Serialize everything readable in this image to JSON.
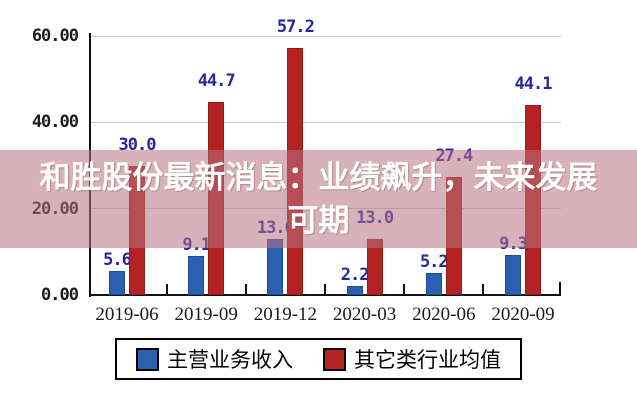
{
  "banner": {
    "line1": "和胜股份最新消息：业绩飙升，未来发展",
    "line2": "可期",
    "background": "rgba(184,115,130,0.55)",
    "text_color": "#ffffff"
  },
  "legend": {
    "items": [
      {
        "label": "主营业务收入",
        "color": "#2b5fb0"
      },
      {
        "label": "其它类行业均值",
        "color": "#b52222"
      }
    ]
  },
  "chart_data": {
    "type": "bar",
    "title": "",
    "categories": [
      "2019-06",
      "2019-09",
      "2019-12",
      "2020-03",
      "2020-06",
      "2020-09"
    ],
    "series": [
      {
        "name": "主营业务收入",
        "color": "#2b5fb0",
        "values": [
          5.6,
          9.1,
          13.0,
          2.2,
          5.2,
          9.3
        ]
      },
      {
        "name": "其它类行业均值",
        "color": "#b52222",
        "values": [
          30.0,
          44.7,
          57.2,
          13.0,
          27.4,
          44.1
        ]
      }
    ],
    "value_labels_red": [
      "30.0",
      "44.7",
      "57.2",
      "13.0",
      "27.4",
      "44.1"
    ],
    "xlabel": "",
    "ylabel": "",
    "ylim": [
      0,
      60
    ],
    "y_ticks": [
      "0.00",
      "20.00",
      "40.00",
      "60.00"
    ],
    "grid": true,
    "legend_position": "bottom",
    "value_label_color": "#28289b"
  }
}
